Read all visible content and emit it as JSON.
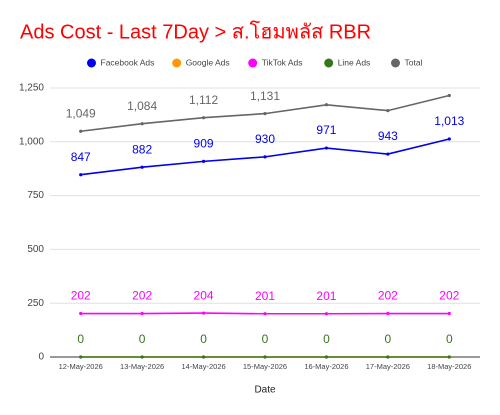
{
  "chart_data": {
    "type": "line",
    "title": "Ads Cost - Last 7Day > ส.โฮมพลัส RBR",
    "x_label": "Date",
    "categories": [
      "12-May-2026",
      "13-May-2026",
      "14-May-2026",
      "15-May-2026",
      "16-May-2026",
      "17-May-2026",
      "18-May-2026"
    ],
    "series": [
      {
        "name": "Facebook Ads",
        "color": "#0000ee",
        "values": [
          847,
          882,
          909,
          930,
          971,
          943,
          1013
        ],
        "value_labels": [
          "847",
          "882",
          "909",
          "930",
          "971",
          "943",
          "1,013"
        ]
      },
      {
        "name": "Google Ads",
        "color": "#ff9900",
        "values": [
          0,
          0,
          0,
          0,
          0,
          0,
          0
        ],
        "value_labels": [
          null,
          null,
          null,
          null,
          null,
          null,
          null
        ]
      },
      {
        "name": "TikTok Ads",
        "color": "#ff00ff",
        "values": [
          202,
          202,
          204,
          201,
          201,
          202,
          202
        ]
      },
      {
        "name": "Line Ads",
        "color": "#38761d",
        "values": [
          0,
          0,
          0,
          0,
          0,
          0,
          0
        ]
      },
      {
        "name": "Total",
        "color": "#666666",
        "values": [
          1049,
          1084,
          1112,
          1131,
          1172,
          1145,
          1215
        ],
        "value_labels": [
          "1,049",
          "1,084",
          "1,112",
          "1,131",
          null,
          null,
          null
        ]
      }
    ],
    "ylim": [
      0,
      1250
    ],
    "yticks": [
      0,
      250,
      500,
      750,
      {
        "value": 1000,
        "label": "1,000"
      },
      {
        "value": 1250,
        "label": "1,250"
      }
    ],
    "grid": true,
    "legend": "top",
    "title_color": "#ff0000"
  }
}
